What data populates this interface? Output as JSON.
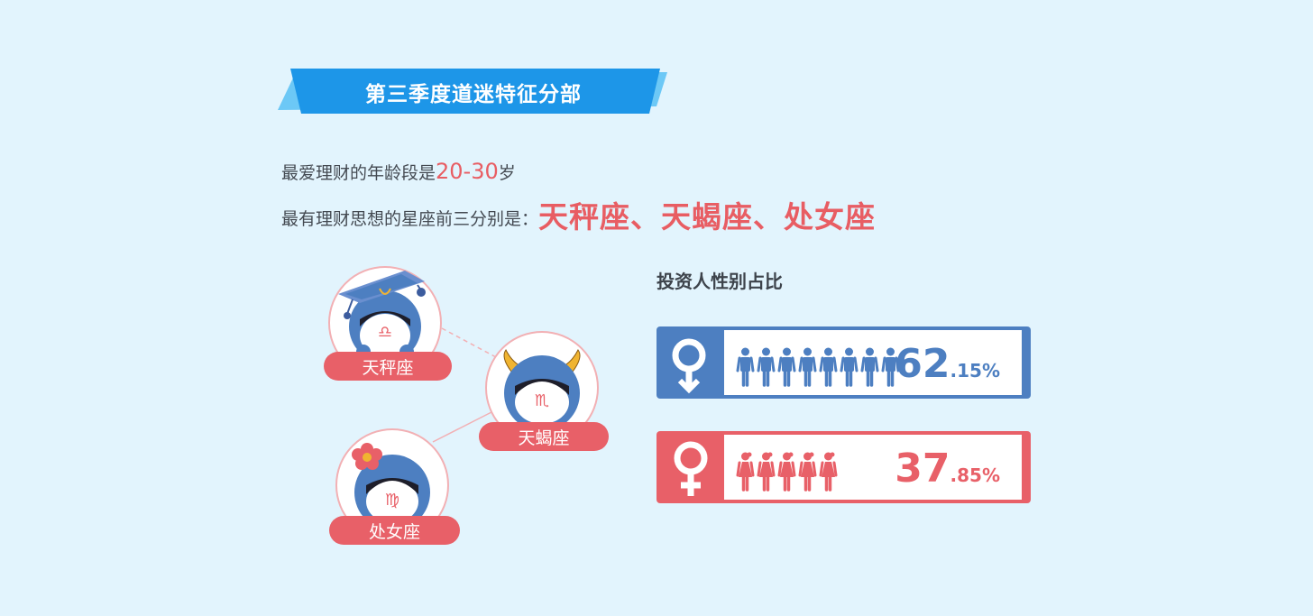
{
  "banner": {
    "title": "第三季度道迷特征分部"
  },
  "intro": {
    "line1_prefix": "最爱理财的年龄段是",
    "line1_highlight": "20-30",
    "line1_suffix": "岁",
    "line2_prefix": "最有理财思想的星座前三分别是：",
    "line2_highlight": "天秤座、天蝎座、处女座"
  },
  "zodiac": {
    "signs": [
      {
        "label": "天秤座",
        "symbol": "♎",
        "accessory": "graduation-cap"
      },
      {
        "label": "天蝎座",
        "symbol": "♏",
        "accessory": "horns"
      },
      {
        "label": "处女座",
        "symbol": "♍",
        "accessory": "flower"
      }
    ]
  },
  "gender": {
    "title": "投资人性别占比",
    "male": {
      "pct_int": "62",
      "pct_dec": ".15%",
      "color": "#4d7fc1",
      "figures": 8,
      "icon": "male-symbol-icon"
    },
    "female": {
      "pct_int": "37",
      "pct_dec": ".85%",
      "color": "#e86068",
      "figures": 5,
      "icon": "female-symbol-icon"
    }
  },
  "colors": {
    "background": "#e2f4fd",
    "accent_red": "#e86068",
    "accent_blue": "#4d7fc1",
    "banner_blue": "#1d96e8"
  }
}
